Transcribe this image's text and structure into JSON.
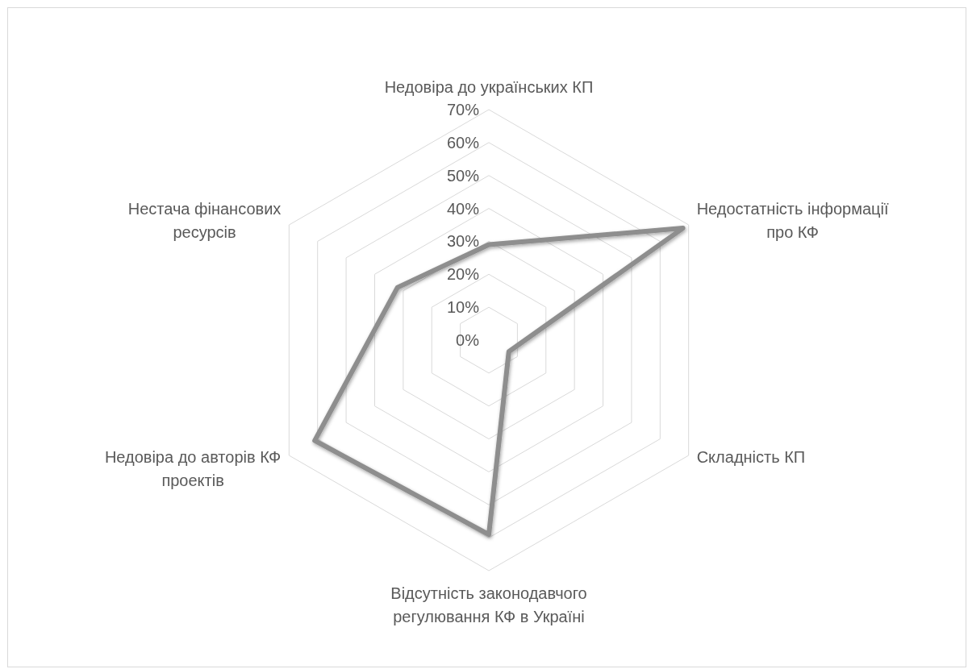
{
  "chart_data": {
    "type": "radar",
    "categories": [
      "Недовіра до українських КП",
      "Недостатність інформації про КФ",
      "Складність КП",
      "Відсутність законодавчого регулювання КФ в Україні",
      "Недовіра до авторів КФ проектів",
      "Нестача фінансових ресурсів"
    ],
    "series": [
      {
        "color": "#8e8e8e",
        "values": [
          29,
          68,
          7,
          59,
          61,
          32
        ]
      }
    ],
    "ylim": [
      0,
      70
    ],
    "yticks": [
      {
        "value": 0,
        "label": "0%"
      },
      {
        "value": 10,
        "label": "10%"
      },
      {
        "value": 20,
        "label": "20%"
      },
      {
        "value": 30,
        "label": "30%"
      },
      {
        "value": 40,
        "label": "40%"
      },
      {
        "value": 50,
        "label": "50%"
      },
      {
        "value": 60,
        "label": "60%"
      },
      {
        "value": 70,
        "label": "70%"
      }
    ],
    "grid": true
  }
}
